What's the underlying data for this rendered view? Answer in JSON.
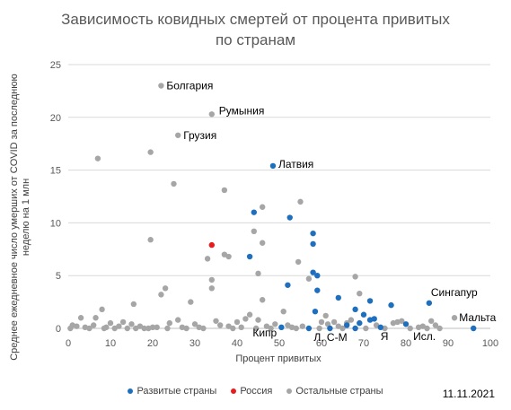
{
  "chart_data": {
    "type": "scatter",
    "title": "Зависимость ковидных смертей от процента привитых по странам",
    "title_lines": [
      "Зависимость ковидных смертей от процента привитых",
      "по странам"
    ],
    "xlabel": "Процент привитых",
    "ylabel": "Среднее  ежедневное  число умерших  от COVID за последнюю неделю на 1 млн",
    "xlim": [
      0,
      100
    ],
    "ylim": [
      0,
      25
    ],
    "x_ticks": [
      "0",
      "10",
      "20",
      "30",
      "40",
      "50",
      "60",
      "70",
      "80",
      "90",
      "100"
    ],
    "y_ticks": [
      "0",
      "5",
      "10",
      "15",
      "20",
      "25"
    ],
    "grid": "horizontal",
    "legend_position": "bottom",
    "date": "11.11.2021",
    "series": [
      {
        "name": "Развитые страны",
        "color": "#1f6fbf",
        "points": [
          {
            "x": 48.5,
            "y": 15.4
          },
          {
            "x": 44,
            "y": 11
          },
          {
            "x": 52.5,
            "y": 10.5
          },
          {
            "x": 58,
            "y": 9
          },
          {
            "x": 58,
            "y": 8
          },
          {
            "x": 43,
            "y": 6.8
          },
          {
            "x": 58,
            "y": 5.3
          },
          {
            "x": 59,
            "y": 5
          },
          {
            "x": 52,
            "y": 4.1
          },
          {
            "x": 59,
            "y": 3.6
          },
          {
            "x": 64,
            "y": 2.9
          },
          {
            "x": 71.5,
            "y": 2.6
          },
          {
            "x": 85.5,
            "y": 2.4
          },
          {
            "x": 76.5,
            "y": 2.2
          },
          {
            "x": 68,
            "y": 1.8
          },
          {
            "x": 70,
            "y": 1.3
          },
          {
            "x": 58.5,
            "y": 1.6
          },
          {
            "x": 72.5,
            "y": 0.9
          },
          {
            "x": 71.5,
            "y": 0.8
          },
          {
            "x": 80,
            "y": 0.4
          },
          {
            "x": 66,
            "y": 0.3
          },
          {
            "x": 69,
            "y": 0.5
          },
          {
            "x": 74,
            "y": 0.1
          },
          {
            "x": 62,
            "y": 0.0
          },
          {
            "x": 57,
            "y": 0.0
          },
          {
            "x": 50.5,
            "y": 0.1
          },
          {
            "x": 68,
            "y": 0.0
          },
          {
            "x": 96,
            "y": 0.0
          }
        ]
      },
      {
        "name": "Россия",
        "color": "#e81c1c",
        "points": [
          {
            "x": 34,
            "y": 7.9
          }
        ]
      },
      {
        "name": "Остальные страны",
        "color": "#a6a6a6",
        "points": [
          {
            "x": 22,
            "y": 23
          },
          {
            "x": 34,
            "y": 20.3
          },
          {
            "x": 26,
            "y": 18.3
          },
          {
            "x": 19.5,
            "y": 16.7
          },
          {
            "x": 7,
            "y": 16.1
          },
          {
            "x": 25,
            "y": 13.7
          },
          {
            "x": 37,
            "y": 13.1
          },
          {
            "x": 55,
            "y": 12
          },
          {
            "x": 46,
            "y": 11.5
          },
          {
            "x": 44,
            "y": 9.2
          },
          {
            "x": 19.5,
            "y": 8.4
          },
          {
            "x": 46,
            "y": 8.1
          },
          {
            "x": 38,
            "y": 6.8
          },
          {
            "x": 37,
            "y": 7
          },
          {
            "x": 33,
            "y": 6.6
          },
          {
            "x": 54.5,
            "y": 6.3
          },
          {
            "x": 45,
            "y": 5.2
          },
          {
            "x": 34,
            "y": 4.6
          },
          {
            "x": 34,
            "y": 3.8
          },
          {
            "x": 57,
            "y": 4.7
          },
          {
            "x": 68,
            "y": 4.9
          },
          {
            "x": 23,
            "y": 3.8
          },
          {
            "x": 22,
            "y": 3.2
          },
          {
            "x": 69,
            "y": 3.3
          },
          {
            "x": 46,
            "y": 2.7
          },
          {
            "x": 29,
            "y": 2.5
          },
          {
            "x": 15.5,
            "y": 2.3
          },
          {
            "x": 8,
            "y": 1.8
          },
          {
            "x": 51,
            "y": 1.6
          },
          {
            "x": 61,
            "y": 1.2
          },
          {
            "x": 3,
            "y": 1.0
          },
          {
            "x": 6.5,
            "y": 1.0
          },
          {
            "x": 43,
            "y": 1.3
          },
          {
            "x": 26,
            "y": 0.8
          },
          {
            "x": 35,
            "y": 0.7
          },
          {
            "x": 42,
            "y": 0.9
          },
          {
            "x": 45,
            "y": 0.8
          },
          {
            "x": 63,
            "y": 0.6
          },
          {
            "x": 66,
            "y": 0.5
          },
          {
            "x": 78,
            "y": 0.6
          },
          {
            "x": 86,
            "y": 0.7
          },
          {
            "x": 91.5,
            "y": 1.0
          },
          {
            "x": 1,
            "y": 0.3
          },
          {
            "x": 2,
            "y": 0.2
          },
          {
            "x": 4,
            "y": 0.1
          },
          {
            "x": 6,
            "y": 0.3
          },
          {
            "x": 9,
            "y": 0.1
          },
          {
            "x": 10,
            "y": 0.5
          },
          {
            "x": 12,
            "y": 0.2
          },
          {
            "x": 13,
            "y": 0.6
          },
          {
            "x": 15,
            "y": 0.4
          },
          {
            "x": 17,
            "y": 0.2
          },
          {
            "x": 18,
            "y": 0.0
          },
          {
            "x": 20,
            "y": 0.1
          },
          {
            "x": 21,
            "y": 0.1
          },
          {
            "x": 24,
            "y": 0.5
          },
          {
            "x": 27,
            "y": 0.1
          },
          {
            "x": 30,
            "y": 0.4
          },
          {
            "x": 31,
            "y": 0.1
          },
          {
            "x": 36,
            "y": 0.3
          },
          {
            "x": 38,
            "y": 0.2
          },
          {
            "x": 40,
            "y": 0.6
          },
          {
            "x": 41,
            "y": 0.1
          },
          {
            "x": 47,
            "y": 0.2
          },
          {
            "x": 49,
            "y": 0.4
          },
          {
            "x": 52,
            "y": 0.3
          },
          {
            "x": 53,
            "y": 0.1
          },
          {
            "x": 55.5,
            "y": 0.2
          },
          {
            "x": 60,
            "y": 0.6
          },
          {
            "x": 61.5,
            "y": 0.4
          },
          {
            "x": 64,
            "y": 0.2
          },
          {
            "x": 67,
            "y": 0.8
          },
          {
            "x": 73,
            "y": 0.3
          },
          {
            "x": 77,
            "y": 0.5
          },
          {
            "x": 79,
            "y": 0.7
          },
          {
            "x": 83,
            "y": 0.1
          },
          {
            "x": 84,
            "y": 0.2
          },
          {
            "x": 87,
            "y": 0.3
          },
          {
            "x": 88,
            "y": 0.0
          },
          {
            "x": 0.5,
            "y": 0.0
          },
          {
            "x": 5,
            "y": 0.0
          },
          {
            "x": 8.5,
            "y": 0.0
          },
          {
            "x": 11,
            "y": 0.0
          },
          {
            "x": 14,
            "y": 0.0
          },
          {
            "x": 16,
            "y": 0.0
          },
          {
            "x": 19,
            "y": 0.0
          },
          {
            "x": 23.5,
            "y": 0.0
          },
          {
            "x": 28,
            "y": 0.0
          },
          {
            "x": 32,
            "y": 0.0
          },
          {
            "x": 39,
            "y": 0.0
          },
          {
            "x": 44.5,
            "y": 0.0
          },
          {
            "x": 48,
            "y": 0.0
          },
          {
            "x": 54,
            "y": 0.0
          },
          {
            "x": 59.5,
            "y": 0.0
          },
          {
            "x": 65,
            "y": 0.0
          },
          {
            "x": 70.5,
            "y": 0.0
          },
          {
            "x": 75,
            "y": 0.0
          },
          {
            "x": 81,
            "y": 0.0
          },
          {
            "x": 85,
            "y": 0.0
          }
        ]
      }
    ],
    "annotations": [
      {
        "text": "Болгария",
        "x": 22,
        "y": 23
      },
      {
        "text": "Румыния",
        "x": 34,
        "y": 20.3
      },
      {
        "text": "Грузия",
        "x": 26,
        "y": 18.3
      },
      {
        "text": "Латвия",
        "x": 48.5,
        "y": 15.4
      },
      {
        "text": "Сингапур",
        "x": 85.5,
        "y": 2.4
      },
      {
        "text": "Мальта",
        "x": 96,
        "y": 0.0
      },
      {
        "text": "Кипр",
        "x": 50.5,
        "y": 0.1
      },
      {
        "text": "Л, С-М",
        "x": 62,
        "y": 0.0
      },
      {
        "text": "Я",
        "x": 74,
        "y": 0.1
      },
      {
        "text": "Исл.",
        "x": 83,
        "y": 0.1
      }
    ]
  }
}
